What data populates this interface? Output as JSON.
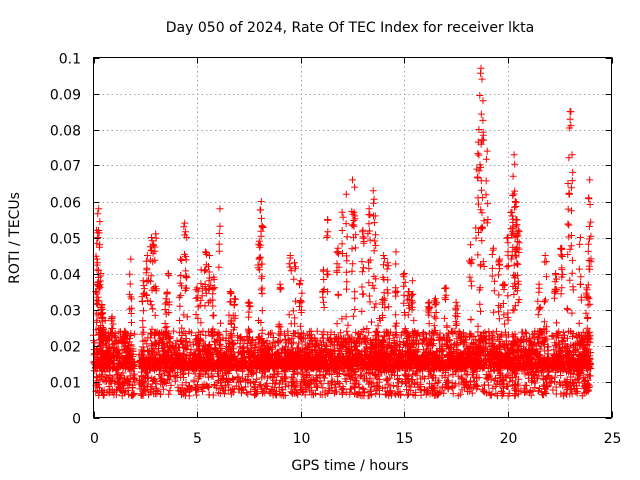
{
  "chart_data": {
    "type": "scatter",
    "title": "Day 050 of 2024, Rate Of TEC Index for receiver lkta",
    "xlabel": "GPS time / hours",
    "ylabel": "ROTI / TECUs",
    "xlim": [
      0,
      25
    ],
    "ylim": [
      0,
      0.1
    ],
    "xticks": [
      "0",
      "5",
      "10",
      "15",
      "20",
      "25"
    ],
    "yticks": [
      "0",
      "0.01",
      "0.02",
      "0.03",
      "0.04",
      "0.05",
      "0.06",
      "0.07",
      "0.08",
      "0.09",
      "0.1"
    ],
    "xtick_values": [
      0,
      5,
      10,
      15,
      20,
      25
    ],
    "ytick_values": [
      0,
      0.01,
      0.02,
      0.03,
      0.04,
      0.05,
      0.06,
      0.07,
      0.08,
      0.09,
      0.1
    ],
    "grid": true,
    "marker": "+",
    "color": "#ff0000",
    "gaps_hours": [
      [
        2.0,
        2.2
      ]
    ],
    "series": [
      {
        "name": "ROTI",
        "x": [
          0.1,
          0.15,
          0.2,
          0.25,
          0.3,
          0.35,
          0.4,
          0.45,
          0.9,
          1.5,
          1.7,
          1.8,
          2.4,
          2.6,
          2.8,
          2.9,
          3.0,
          3.5,
          3.6,
          4.2,
          4.4,
          4.5,
          5.0,
          5.2,
          5.4,
          5.6,
          5.8,
          6.1,
          6.6,
          6.8,
          7.5,
          8.0,
          8.1,
          8.15,
          9.0,
          9.5,
          9.7,
          10.0,
          11.1,
          11.3,
          11.8,
          12.0,
          12.2,
          12.5,
          12.6,
          13.0,
          13.3,
          13.5,
          13.6,
          14.0,
          14.2,
          14.6,
          15.0,
          15.2,
          15.4,
          16.2,
          16.5,
          17.0,
          17.5,
          18.2,
          18.5,
          18.6,
          18.7,
          18.75,
          18.8,
          19.0,
          19.3,
          19.6,
          19.8,
          20.0,
          20.2,
          20.25,
          20.3,
          20.35,
          20.4,
          20.5,
          21.5,
          21.8,
          22.3,
          22.6,
          22.9,
          23.0,
          23.1,
          23.5,
          23.8,
          23.9,
          23.95
        ],
        "y": [
          0.035,
          0.052,
          0.043,
          0.058,
          0.048,
          0.04,
          0.031,
          0.025,
          0.028,
          0.024,
          0.02,
          0.044,
          0.038,
          0.045,
          0.05,
          0.048,
          0.051,
          0.033,
          0.04,
          0.044,
          0.054,
          0.05,
          0.036,
          0.041,
          0.046,
          0.045,
          0.039,
          0.058,
          0.035,
          0.033,
          0.032,
          0.049,
          0.06,
          0.053,
          0.037,
          0.045,
          0.043,
          0.038,
          0.041,
          0.055,
          0.047,
          0.057,
          0.062,
          0.066,
          0.064,
          0.052,
          0.058,
          0.063,
          0.056,
          0.045,
          0.043,
          0.046,
          0.04,
          0.035,
          0.038,
          0.032,
          0.033,
          0.036,
          0.032,
          0.048,
          0.069,
          0.08,
          0.097,
          0.094,
          0.088,
          0.074,
          0.047,
          0.044,
          0.037,
          0.05,
          0.057,
          0.067,
          0.073,
          0.06,
          0.055,
          0.052,
          0.037,
          0.045,
          0.04,
          0.047,
          0.065,
          0.085,
          0.073,
          0.05,
          0.036,
          0.061,
          0.066
        ],
        "baseline": "dense band of observations between 0.005 and 0.03 TECU/min across 0-24 h, gap near 2.0-2.2 h"
      }
    ]
  }
}
